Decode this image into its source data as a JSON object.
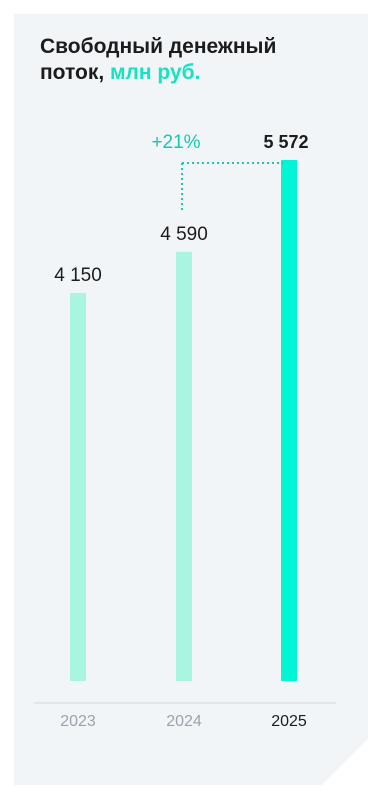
{
  "title": {
    "main": "Свободный денежный поток,",
    "unit": "млн руб."
  },
  "colors": {
    "light_bar": "#a9f5e2",
    "highlight_bar": "#00f5d4",
    "accent_text": "#16c9ad",
    "text": "#1c1c1c",
    "muted": "#9aa3ab"
  },
  "chart_data": {
    "type": "bar",
    "categories": [
      "2023",
      "2024",
      "2025"
    ],
    "values": [
      4150,
      4590,
      5572
    ],
    "value_labels": [
      "4 150",
      "4 590",
      "5 572"
    ],
    "highlight_index": 2,
    "annotation": {
      "text": "+21%",
      "from_index": 1,
      "to_index": 2
    },
    "title": "Свободный денежный поток, млн руб.",
    "xlabel": "",
    "ylabel": "",
    "ylim": [
      0,
      5572
    ],
    "grid": false,
    "legend": "none"
  }
}
